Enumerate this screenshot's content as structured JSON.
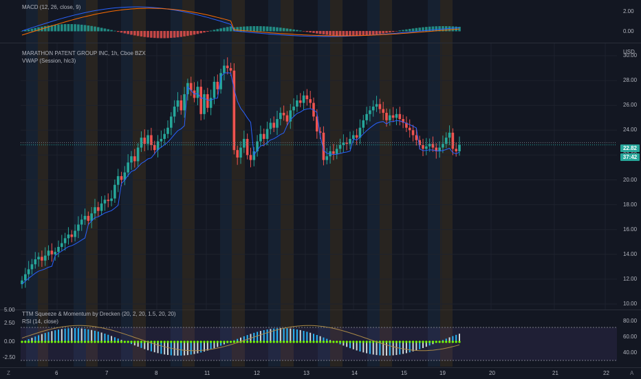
{
  "macd": {
    "legend": "MACD (12, 26, close, 9)",
    "axis": [
      "2.00",
      "0.00"
    ]
  },
  "main": {
    "title": "MARATHON PATENT GROUP INC, 1h, Cboe BZX",
    "vwap_label": "VWAP (Session, hlc3)",
    "currency": "USD",
    "y_axis": [
      "30.00",
      "28.00",
      "26.00",
      "24.00",
      "22.00",
      "20.00",
      "18.00",
      "16.00",
      "14.00",
      "12.00",
      "10.00"
    ],
    "last_price": "22.82",
    "countdown": "37:42"
  },
  "indicator": {
    "ttm_label": "TTM Squeeze & Momentum by Drecken (20, 2, 20, 1.5, 20, 20)",
    "rsi_label": "RSI (14, close)",
    "left_axis": [
      "5.00",
      "2.50",
      "0.00",
      "-2.50"
    ],
    "right_axis": [
      "80.00",
      "60.00",
      "40.00"
    ]
  },
  "x_axis": {
    "labels": [
      "6",
      "7",
      "8",
      "11",
      "12",
      "13",
      "14",
      "15",
      "19",
      "20",
      "21",
      "22"
    ]
  },
  "corners": {
    "left": "Z",
    "right": "A"
  },
  "colors": {
    "background": "#131722",
    "up": "#26a69a",
    "down": "#ef5350",
    "vwap": "#2962ff",
    "macd_line": "#2962ff",
    "signal_line": "#ff6d00",
    "squeeze_dot": "#76ff03",
    "rsi_band": "#7e57c2"
  },
  "chart_data": {
    "type": "candlestick",
    "symbol": "MARATHON PATENT GROUP INC",
    "interval": "1h",
    "ylim": [
      10,
      30
    ],
    "x_labels": [
      "6",
      "7",
      "8",
      "11",
      "12",
      "13",
      "14",
      "15",
      "19",
      "20",
      "21",
      "22"
    ],
    "closes": [
      11.9,
      12.4,
      12.8,
      13.2,
      13.6,
      13.8,
      13.5,
      13.9,
      14.3,
      14.0,
      14.2,
      14.6,
      14.9,
      15.3,
      15.6,
      15.4,
      15.9,
      16.4,
      16.8,
      17.1,
      16.7,
      17.3,
      17.8,
      17.5,
      18.1,
      18.4,
      18.3,
      18.5,
      19.6,
      20.3,
      20.0,
      20.6,
      21.4,
      21.9,
      21.5,
      22.6,
      23.4,
      22.9,
      23.6,
      22.8,
      22.4,
      23.1,
      23.3,
      23.7,
      24.2,
      25.1,
      25.9,
      26.4,
      25.6,
      26.9,
      27.8,
      27.2,
      26.6,
      27.5,
      25.3,
      26.9,
      25.8,
      26.6,
      27.9,
      27.3,
      28.6,
      29.2,
      29.0,
      28.8,
      22.4,
      21.8,
      22.6,
      23.3,
      22.0,
      21.6,
      22.3,
      23.1,
      23.7,
      23.3,
      24.1,
      24.6,
      24.2,
      24.9,
      25.4,
      25.2,
      24.7,
      25.6,
      25.9,
      26.4,
      26.2,
      26.8,
      26.5,
      26.2,
      25.1,
      23.9,
      23.8,
      21.6,
      21.9,
      22.3,
      22.1,
      22.5,
      22.8,
      23.0,
      22.9,
      23.3,
      23.6,
      23.4,
      24.2,
      24.8,
      25.3,
      25.6,
      25.9,
      26.1,
      25.7,
      25.4,
      24.8,
      25.2,
      25.0,
      25.3,
      24.9,
      24.6,
      24.2,
      24.0,
      23.6,
      23.2,
      22.8,
      22.5,
      22.7,
      22.9,
      22.6,
      22.3,
      22.6,
      22.9,
      23.4,
      23.8,
      22.5,
      22.3,
      22.82
    ],
    "rsi_ylim": [
      30,
      85
    ],
    "momentum_ylim": [
      -3,
      5.5
    ]
  }
}
